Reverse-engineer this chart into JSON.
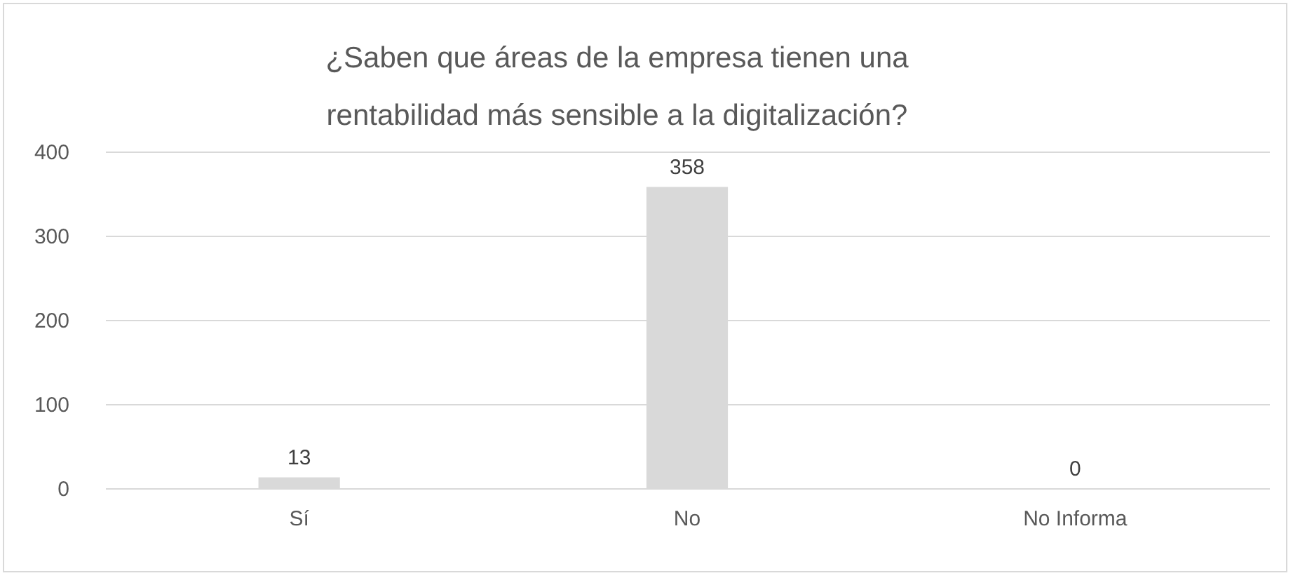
{
  "chart_data": {
    "type": "bar",
    "title": "¿Saben que áreas de la empresa tienen una rentabilidad más sensible a la digitalización?",
    "categories": [
      "Sí",
      "No",
      "No Informa"
    ],
    "values": [
      13,
      358,
      0
    ],
    "color": "#d9d9d9",
    "ylim": [
      0,
      400
    ],
    "yticks": [
      0,
      100,
      200,
      300,
      400
    ],
    "grid": "y",
    "data_labels": true
  }
}
